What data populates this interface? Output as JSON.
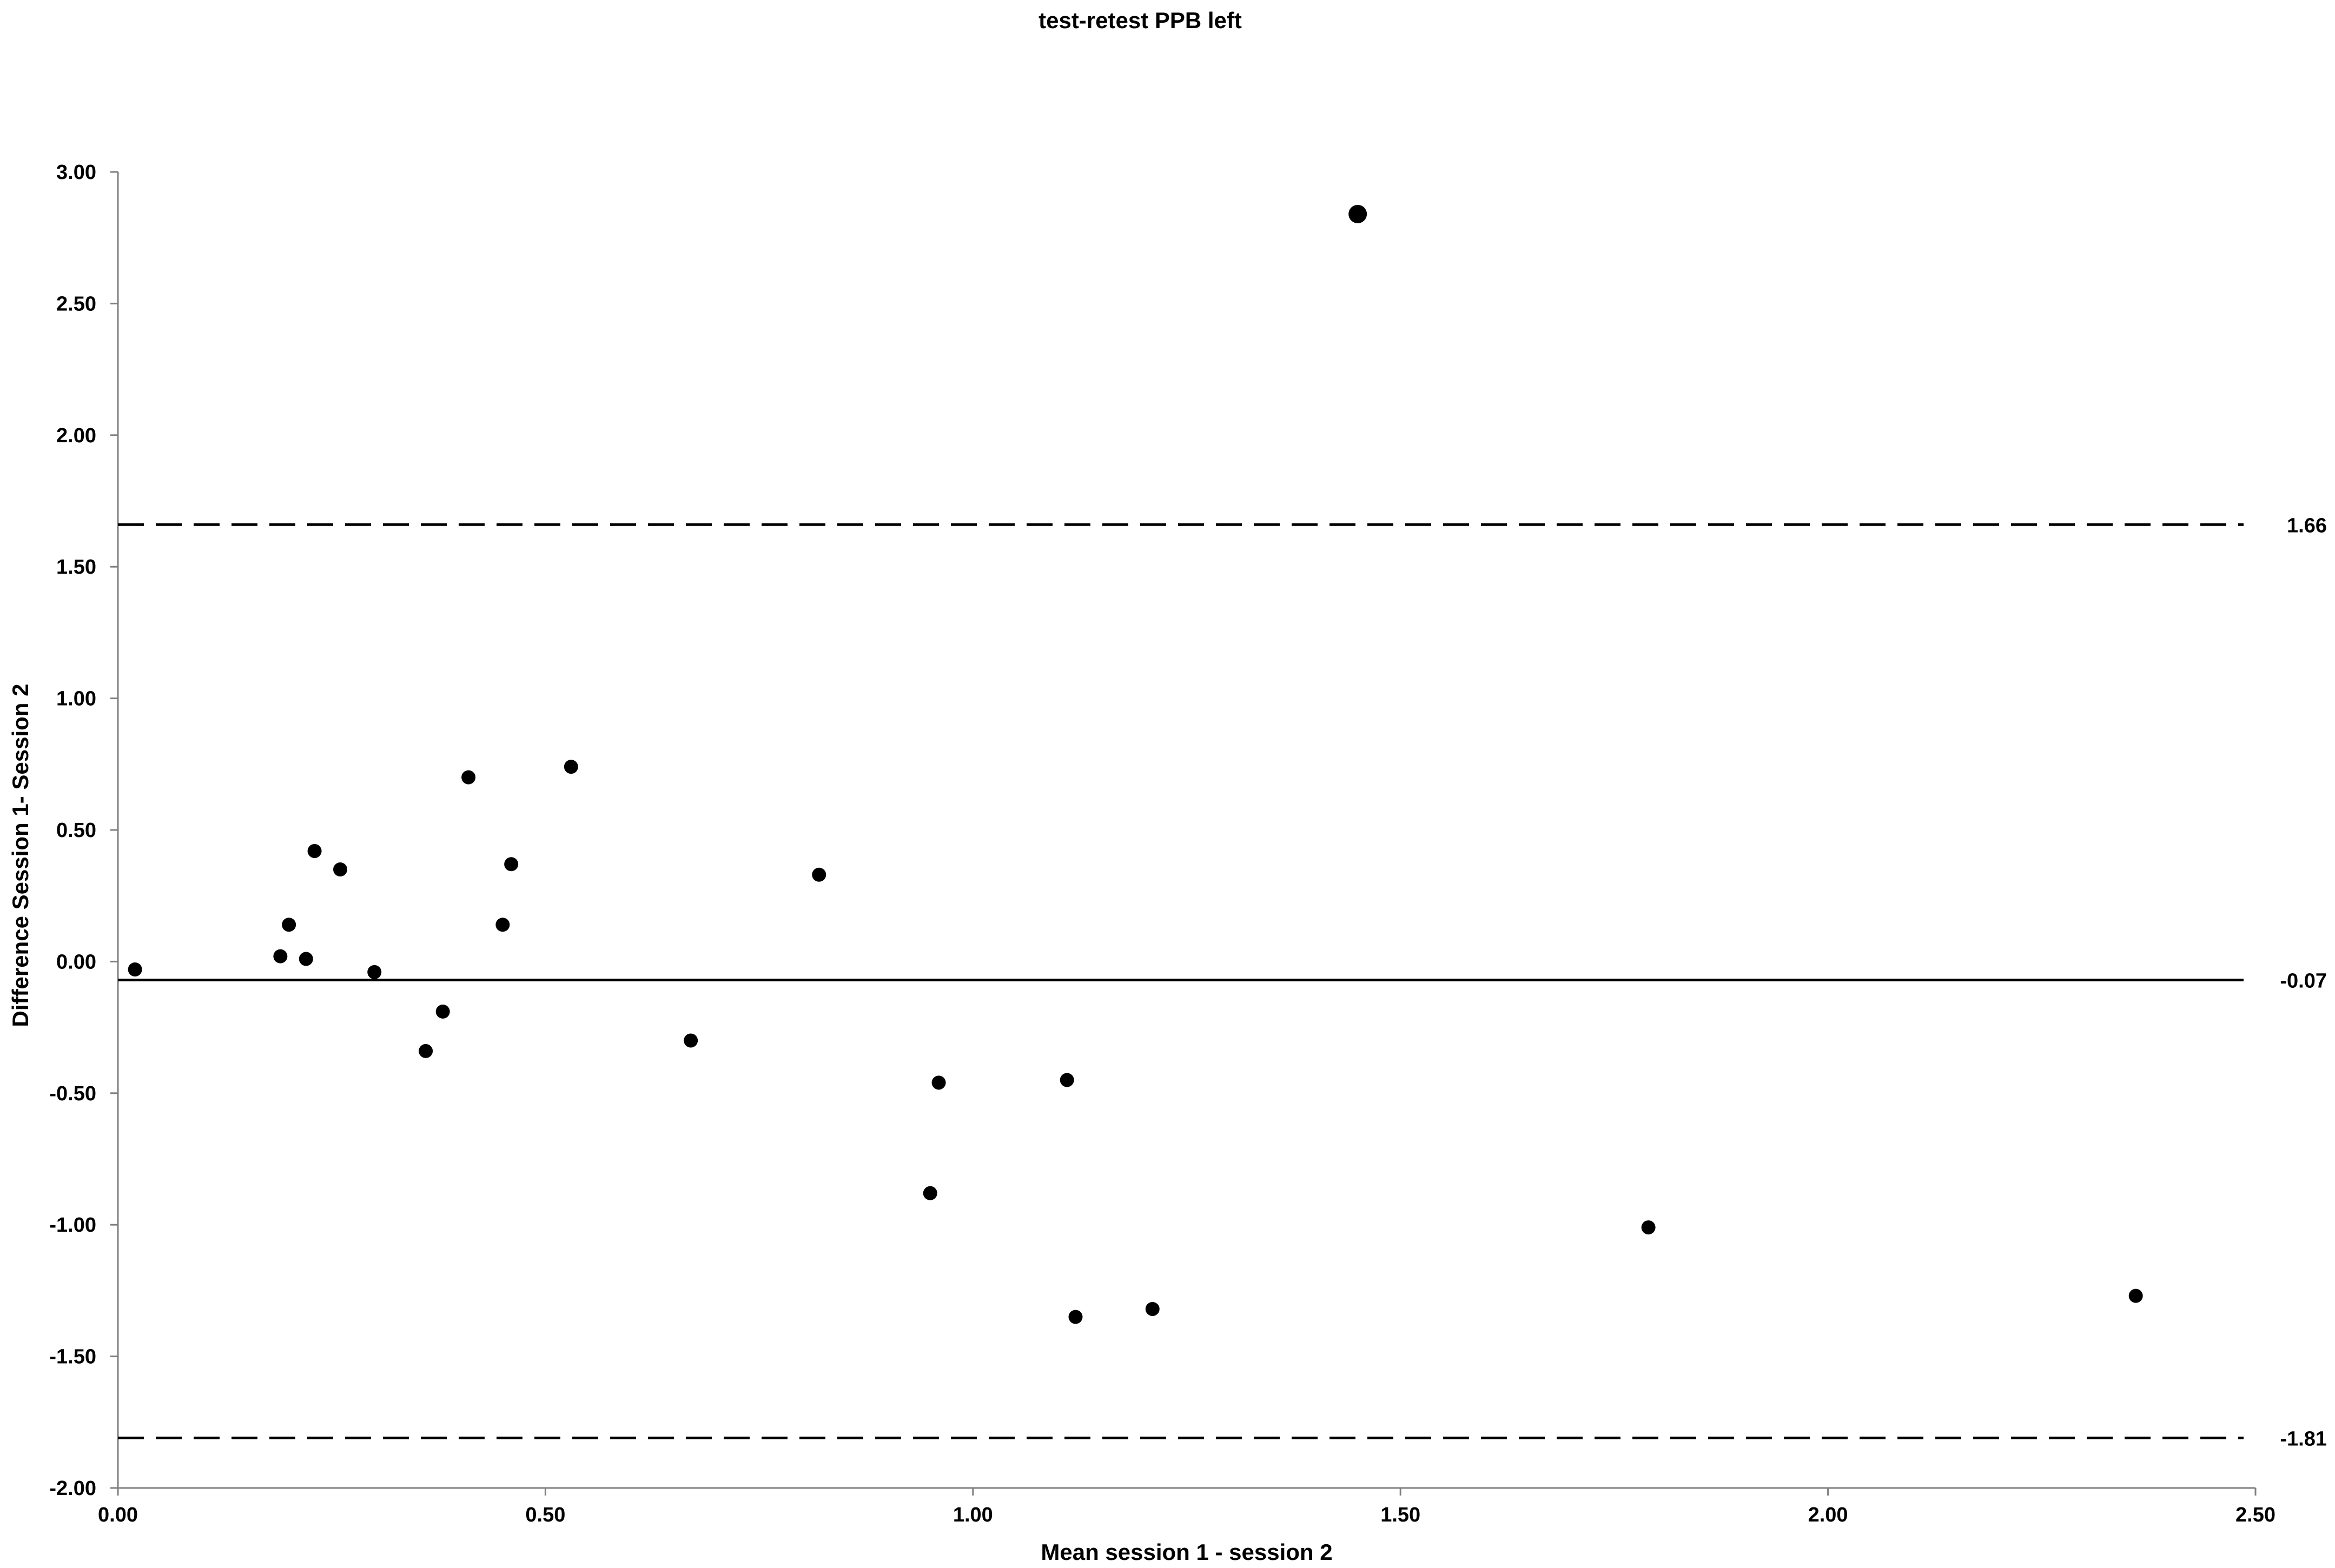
{
  "chart_data": {
    "type": "scatter",
    "title": "test-retest PPB left",
    "xlabel": "Mean session 1 - session 2",
    "ylabel": "Difference Session 1- Session 2",
    "xlim": [
      0,
      2.5
    ],
    "ylim": [
      -2,
      3
    ],
    "xticks": [
      "0.00",
      "0.50",
      "1.00",
      "1.50",
      "2.00",
      "2.50"
    ],
    "yticks": [
      "3.00",
      "2.50",
      "2.00",
      "1.50",
      "1.00",
      "0.50",
      "0.00",
      "-0.50",
      "-1.00",
      "-1.50",
      "-2.00"
    ],
    "grid": false,
    "legend": "none",
    "reference_lines": [
      {
        "value": 1.66,
        "label": "1.66",
        "style": "dashed"
      },
      {
        "value": -0.07,
        "label": "-0.07",
        "style": "solid"
      },
      {
        "value": -1.81,
        "label": "-1.81",
        "style": "dashed"
      }
    ],
    "points": [
      {
        "x": 0.02,
        "y": -0.03
      },
      {
        "x": 0.19,
        "y": 0.02
      },
      {
        "x": 0.2,
        "y": 0.14
      },
      {
        "x": 0.22,
        "y": 0.01
      },
      {
        "x": 0.23,
        "y": 0.42
      },
      {
        "x": 0.26,
        "y": 0.35
      },
      {
        "x": 0.3,
        "y": -0.04
      },
      {
        "x": 0.36,
        "y": -0.34
      },
      {
        "x": 0.38,
        "y": -0.19
      },
      {
        "x": 0.41,
        "y": 0.7
      },
      {
        "x": 0.45,
        "y": 0.14
      },
      {
        "x": 0.46,
        "y": 0.37
      },
      {
        "x": 0.53,
        "y": 0.74
      },
      {
        "x": 0.67,
        "y": -0.3
      },
      {
        "x": 0.82,
        "y": 0.33
      },
      {
        "x": 0.95,
        "y": -0.88
      },
      {
        "x": 0.96,
        "y": -0.46
      },
      {
        "x": 1.11,
        "y": -0.45
      },
      {
        "x": 1.12,
        "y": -1.35
      },
      {
        "x": 1.21,
        "y": -1.32
      },
      {
        "x": 1.45,
        "y": 2.84
      },
      {
        "x": 1.79,
        "y": -1.01
      },
      {
        "x": 2.36,
        "y": -1.27
      }
    ],
    "colors": {
      "marker": "#000000",
      "line": "#000000",
      "axis": "#7f7f7f"
    }
  }
}
